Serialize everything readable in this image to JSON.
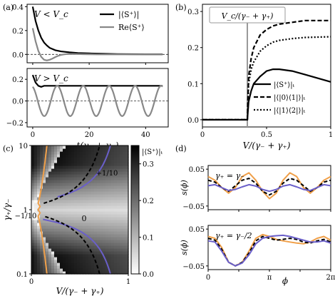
{
  "chart_data": [
    {
      "panel": "(a)",
      "type": "line",
      "subpanels": [
        {
          "annotation": "V < V_c",
          "xlim": [
            -2,
            48
          ],
          "ylim": [
            -0.07,
            0.42
          ],
          "yticks": [
            "0.0",
            "0.2",
            "0.4"
          ],
          "series": [
            {
              "name": "|⟨S⁺⟩|",
              "color": "#000000",
              "x": [
                0,
                1,
                2,
                3,
                4,
                5,
                6,
                8,
                10,
                13,
                16,
                20,
                25,
                30,
                35,
                40,
                46
              ],
              "y": [
                0.4,
                0.28,
                0.2,
                0.14,
                0.1,
                0.075,
                0.055,
                0.035,
                0.025,
                0.017,
                0.012,
                0.008,
                0.005,
                0.003,
                0.002,
                0.001,
                0.001
              ]
            },
            {
              "name": "Re⟨S⁺⟩",
              "color": "#888888",
              "x": [
                0,
                1,
                2,
                3,
                4,
                5,
                6,
                7,
                8,
                9,
                10,
                11,
                12,
                14,
                16,
                18,
                20,
                23,
                26,
                30,
                35,
                40,
                46
              ],
              "y": [
                0.22,
                0.11,
                0.03,
                -0.02,
                -0.045,
                -0.05,
                -0.045,
                -0.035,
                -0.022,
                -0.012,
                -0.004,
                0.0,
                0.003,
                0.004,
                0.003,
                0.002,
                0.001,
                0.0,
                0.0,
                0.0,
                0.0,
                0.0,
                0.0
              ]
            }
          ]
        },
        {
          "annotation": "V > V_c",
          "xlim": [
            -2,
            48
          ],
          "ylim": [
            -0.24,
            0.3
          ],
          "yticks": [
            "−0.2",
            "0.0",
            "0.2"
          ],
          "xticks": [
            "0",
            "20",
            "40"
          ],
          "xlabel": "t(γ₋ + γ₊)",
          "series": [
            {
              "name": "|⟨S⁺⟩|",
              "color": "#000000",
              "x": [
                0,
                1,
                2,
                3,
                4,
                6,
                8,
                10,
                15,
                20,
                25,
                30,
                35,
                40,
                46
              ],
              "y": [
                0.24,
                0.17,
                0.14,
                0.13,
                0.14,
                0.14,
                0.14,
                0.14,
                0.14,
                0.14,
                0.14,
                0.14,
                0.14,
                0.14,
                0.14
              ]
            },
            {
              "name": "Re⟨S⁺⟩",
              "color": "#888888",
              "period": 9.2,
              "amplitude": 0.14,
              "offset": 0.0,
              "x": [
                0,
                46
              ]
            }
          ]
        }
      ]
    },
    {
      "panel": "(b)",
      "type": "line",
      "xlim": [
        0,
        1
      ],
      "ylim": [
        -0.02,
        0.32
      ],
      "xticks": [
        "0",
        "0.5",
        "1"
      ],
      "yticks": [
        "0.0",
        "0.1",
        "0.2",
        "0.3"
      ],
      "xlabel": "V/(γ₋ + γ₊)",
      "annotation": "V_c/(γ₋ + γ₊)",
      "vline": 0.35,
      "series": [
        {
          "name": "|⟨S⁺⟩|ₜ",
          "style": "solid",
          "x": [
            0,
            0.35,
            0.36,
            0.38,
            0.4,
            0.45,
            0.5,
            0.55,
            0.6,
            0.7,
            0.8,
            0.9,
            1.0
          ],
          "y": [
            0,
            0,
            0.05,
            0.08,
            0.1,
            0.12,
            0.135,
            0.14,
            0.14,
            0.135,
            0.125,
            0.115,
            0.105
          ]
        },
        {
          "name": "|⟨|0⟩⟨1|⟩|ₜ",
          "style": "dashed",
          "x": [
            0,
            0.35,
            0.36,
            0.38,
            0.4,
            0.45,
            0.5,
            0.55,
            0.6,
            0.7,
            0.8,
            0.9,
            1.0
          ],
          "y": [
            0,
            0,
            0.12,
            0.17,
            0.2,
            0.235,
            0.25,
            0.26,
            0.265,
            0.27,
            0.275,
            0.275,
            0.275
          ]
        },
        {
          "name": "|⟨|1⟩⟨2|⟩|ₜ",
          "style": "dotted",
          "x": [
            0,
            0.35,
            0.36,
            0.38,
            0.4,
            0.45,
            0.5,
            0.55,
            0.6,
            0.7,
            0.8,
            0.9,
            1.0
          ],
          "y": [
            0,
            0,
            0.1,
            0.14,
            0.16,
            0.19,
            0.205,
            0.215,
            0.22,
            0.225,
            0.228,
            0.229,
            0.23
          ]
        }
      ]
    },
    {
      "panel": "(c)",
      "type": "heatmap",
      "xlabel": "V/(γ₋ + γ₊)",
      "ylabel": "γ₊/γ₋",
      "xlim": [
        0,
        1
      ],
      "ylim_log10": [
        -1,
        1
      ],
      "xticks": [
        "0",
        "1"
      ],
      "yticks": [
        "0.1",
        "1",
        "10"
      ],
      "colorbar": {
        "label": "|⟨S⁺⟩|ₜ",
        "ticks": [
          "0.0",
          "0.1",
          "0.2",
          "0.3"
        ],
        "range": [
          0,
          0.35
        ]
      },
      "contours": [
        {
          "label": "0",
          "color": "#000000",
          "dashed": true
        },
        {
          "label": "+1/10",
          "color": "#6a5fc9"
        },
        {
          "label": "−1/10",
          "color": "#f0a04a"
        }
      ]
    },
    {
      "panel": "(d)",
      "type": "line",
      "xlabel": "ϕ",
      "ylabel": "s(ϕ)",
      "xticks": [
        "0",
        "π",
        "2π"
      ],
      "subpanels": [
        {
          "annotation": "γ₊ = γ₋",
          "ylim": [
            -0.06,
            0.06
          ],
          "yticks": [
            "0.05",
            "−0.05"
          ],
          "series": [
            {
              "color": "#f0a04a",
              "y": [
                0.03,
                0.02,
                0.0,
                -0.015,
                0.0,
                0.03,
                0.04,
                0.02,
                -0.01,
                -0.03,
                -0.015,
                0.02,
                0.04,
                0.03,
                0.0,
                -0.015,
                0.0,
                0.02,
                0.03
              ]
            },
            {
              "color": "#000000",
              "dashed": true,
              "y": [
                0.02,
                0.015,
                0.0,
                -0.01,
                0.005,
                0.02,
                0.025,
                0.012,
                -0.01,
                -0.02,
                -0.01,
                0.012,
                0.025,
                0.02,
                0.005,
                -0.01,
                0.0,
                0.015,
                0.02
              ]
            },
            {
              "color": "#6a5fc9",
              "y": [
                0.005,
                0.008,
                0.0,
                -0.008,
                -0.005,
                0.002,
                0.008,
                0.004,
                -0.005,
                -0.01,
                -0.005,
                0.004,
                0.008,
                0.002,
                -0.005,
                -0.008,
                0.0,
                0.008,
                0.005
              ]
            }
          ]
        },
        {
          "annotation": "γ₊ = γ₋/2",
          "ylim": [
            -0.06,
            0.06
          ],
          "yticks": [
            "0.05",
            "−0.05"
          ],
          "series": [
            {
              "color": "#f0a04a",
              "y": [
                0.03,
                0.025,
                0.0,
                -0.04,
                -0.05,
                -0.04,
                -0.01,
                0.025,
                0.035,
                0.03,
                0.022,
                0.018,
                0.015,
                0.012,
                0.01,
                0.015,
                0.025,
                0.03,
                0.02
              ]
            },
            {
              "color": "#000000",
              "dashed": true,
              "y": [
                0.025,
                0.02,
                -0.005,
                -0.04,
                -0.05,
                -0.04,
                -0.015,
                0.018,
                0.03,
                0.025,
                0.02,
                0.022,
                0.025,
                0.022,
                0.015,
                0.012,
                0.018,
                0.022,
                0.015
              ]
            },
            {
              "color": "#6a5fc9",
              "y": [
                0.018,
                0.015,
                -0.01,
                -0.04,
                -0.05,
                -0.042,
                -0.02,
                0.01,
                0.025,
                0.03,
                0.032,
                0.033,
                0.03,
                0.025,
                0.02,
                0.015,
                0.015,
                0.018,
                0.012
              ]
            }
          ]
        }
      ]
    }
  ],
  "labels": {
    "a": "(a)",
    "b": "(b)",
    "c": "(c)",
    "d": "(d)"
  }
}
